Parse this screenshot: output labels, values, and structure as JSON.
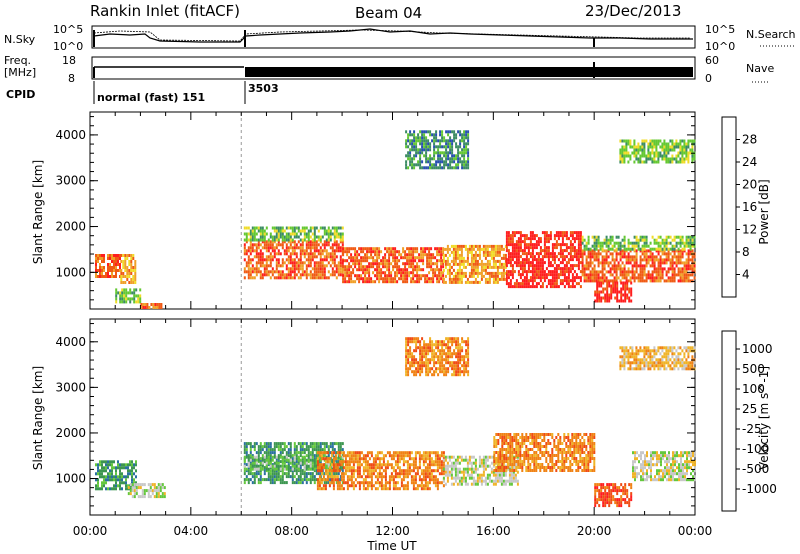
{
  "header": {
    "station": "Rankin Inlet (fitACF)",
    "beam": "Beam 04",
    "date": "23/Dec/2013"
  },
  "top_panels": {
    "nsky": {
      "label": "N.Sky",
      "ticks": [
        "10^5",
        "10^0"
      ]
    },
    "nsearch": {
      "label": "N.Search",
      "ticks": [
        "10^5",
        "10^0"
      ]
    },
    "freq": {
      "label_line1": "Freq.",
      "label_line2": "[MHz]",
      "ticks": [
        "18",
        "8"
      ]
    },
    "nave": {
      "label": "Nave",
      "ticks": [
        "60",
        "0"
      ]
    },
    "cpid": {
      "label": "CPID",
      "segments": [
        "normal (fast) 151",
        "3503"
      ]
    }
  },
  "chart_data": [
    {
      "type": "heatmap",
      "panel": "power",
      "ylabel": "Slant Range [km]",
      "xlabel": "Time UT",
      "x_ticks": [
        "00:00",
        "04:00",
        "08:00",
        "12:00",
        "16:00",
        "20:00",
        "00:00"
      ],
      "x_range_hours": [
        0,
        24
      ],
      "y_ticks": [
        1000,
        2000,
        3000,
        4000
      ],
      "ylim": [
        200,
        4500
      ],
      "colorbar": {
        "label": "Power [dB]",
        "ticks": [
          "4",
          "8",
          "12",
          "16",
          "20",
          "24",
          "28"
        ],
        "colors": [
          "#1a1aff",
          "#2850b0",
          "#3c8c64",
          "#64c832",
          "#f0dc28",
          "#f0a028",
          "#f05a14",
          "#ff1e1e"
        ]
      },
      "regions": [
        {
          "t0": 0.2,
          "t1": 1.2,
          "r0": 900,
          "r1": 1400,
          "level": 6
        },
        {
          "t0": 1.2,
          "t1": 1.8,
          "r0": 800,
          "r1": 1400,
          "level": 5
        },
        {
          "t0": 1.0,
          "t1": 2.0,
          "r0": 350,
          "r1": 650,
          "level": 3
        },
        {
          "t0": 2.0,
          "t1": 2.8,
          "r0": 230,
          "r1": 330,
          "level": 6
        },
        {
          "t0": 6.1,
          "t1": 10.0,
          "r0": 850,
          "r1": 1700,
          "level": 6
        },
        {
          "t0": 6.1,
          "t1": 10.0,
          "r0": 1700,
          "r1": 2000,
          "level": 3
        },
        {
          "t0": 10.0,
          "t1": 14.0,
          "r0": 800,
          "r1": 1550,
          "level": 6
        },
        {
          "t0": 14.0,
          "t1": 16.5,
          "r0": 800,
          "r1": 1600,
          "level": 5
        },
        {
          "t0": 16.5,
          "t1": 19.5,
          "r0": 700,
          "r1": 1900,
          "level": 7
        },
        {
          "t0": 19.5,
          "t1": 24.0,
          "r0": 800,
          "r1": 1500,
          "level": 6
        },
        {
          "t0": 19.5,
          "t1": 24.0,
          "r0": 1500,
          "r1": 1800,
          "level": 3
        },
        {
          "t0": 20.0,
          "t1": 21.5,
          "r0": 400,
          "r1": 800,
          "level": 7
        },
        {
          "t0": 12.5,
          "t1": 15.0,
          "r0": 3300,
          "r1": 4100,
          "level": 2
        },
        {
          "t0": 21.0,
          "t1": 24.0,
          "r0": 3400,
          "r1": 3900,
          "level": 3
        }
      ]
    },
    {
      "type": "heatmap",
      "panel": "velocity",
      "ylabel": "Slant Range [km]",
      "xlabel": "Time UT",
      "x_ticks": [
        "00:00",
        "04:00",
        "08:00",
        "12:00",
        "16:00",
        "20:00",
        "00:00"
      ],
      "x_range_hours": [
        0,
        24
      ],
      "y_ticks": [
        1000,
        2000,
        3000,
        4000
      ],
      "ylim": [
        200,
        4500
      ],
      "colorbar": {
        "label": "Velocity [m s^-1]",
        "ticks": [
          "1000",
          "500",
          "100",
          "25",
          "-25",
          "-100",
          "-500",
          "-1000"
        ],
        "colors": [
          "#1e3cc8",
          "#2a70a0",
          "#3c9650",
          "#64c83c",
          "#c8c8c8",
          "#f0b428",
          "#f08214",
          "#f04b14",
          "#ff1e1e"
        ]
      },
      "regions": [
        {
          "t0": 0.2,
          "t1": 1.8,
          "r0": 800,
          "r1": 1400,
          "level": 2
        },
        {
          "t0": 1.5,
          "t1": 3.0,
          "r0": 600,
          "r1": 900,
          "level": 4
        },
        {
          "t0": 6.1,
          "t1": 10.0,
          "r0": 900,
          "r1": 1800,
          "level": 2
        },
        {
          "t0": 6.1,
          "t1": 10.0,
          "r0": 1200,
          "r1": 1500,
          "level": 3
        },
        {
          "t0": 9.0,
          "t1": 14.0,
          "r0": 800,
          "r1": 1600,
          "level": 6
        },
        {
          "t0": 14.0,
          "t1": 17.0,
          "r0": 900,
          "r1": 1500,
          "level": 4
        },
        {
          "t0": 16.0,
          "t1": 20.0,
          "r0": 1200,
          "r1": 2000,
          "level": 6
        },
        {
          "t0": 20.0,
          "t1": 21.5,
          "r0": 400,
          "r1": 900,
          "level": 7
        },
        {
          "t0": 21.5,
          "t1": 24.0,
          "r0": 1000,
          "r1": 1600,
          "level": 4
        },
        {
          "t0": 12.5,
          "t1": 15.0,
          "r0": 3300,
          "r1": 4100,
          "level": 6
        },
        {
          "t0": 21.0,
          "t1": 24.0,
          "r0": 3400,
          "r1": 3900,
          "level": 5
        }
      ]
    }
  ]
}
